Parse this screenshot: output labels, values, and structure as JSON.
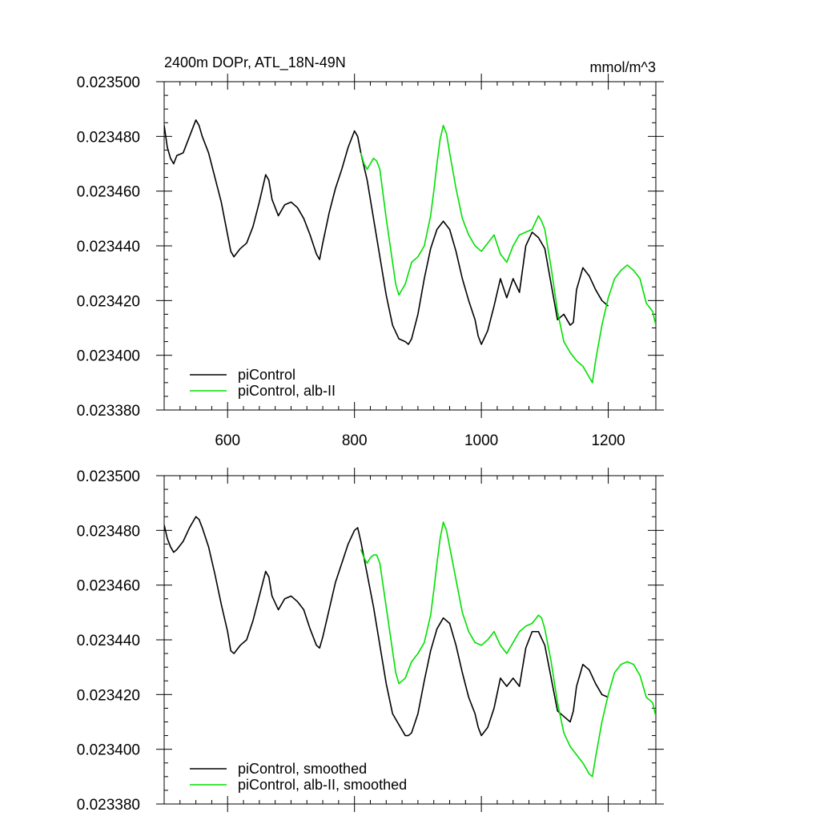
{
  "chart_data": [
    {
      "type": "line",
      "title": "2400m DOPr, ATL_18N-49N",
      "units": "mmol/m^3",
      "xlim": [
        500,
        1275
      ],
      "ylim": [
        0.02338,
        0.0235
      ],
      "x_ticks": [
        600,
        800,
        1000,
        1200
      ],
      "x_tick_labels": [
        "600",
        "800",
        "1000",
        "1200"
      ],
      "y_ticks": [
        0.02338,
        0.0234,
        0.02342,
        0.02344,
        0.02346,
        0.02348,
        0.0235
      ],
      "y_tick_labels": [
        "0.023380",
        "0.023400",
        "0.023420",
        "0.023440",
        "0.023460",
        "0.023480",
        "0.023500"
      ],
      "grid": false,
      "legend_position": "bottom-left",
      "series": [
        {
          "name": "piControl",
          "color": "#000000",
          "x": [
            500,
            505,
            510,
            515,
            520,
            530,
            540,
            550,
            555,
            560,
            570,
            580,
            590,
            600,
            605,
            610,
            620,
            630,
            640,
            650,
            660,
            665,
            670,
            680,
            690,
            700,
            710,
            720,
            730,
            740,
            745,
            750,
            760,
            770,
            780,
            790,
            800,
            805,
            810,
            820,
            830,
            840,
            850,
            860,
            870,
            880,
            885,
            890,
            900,
            910,
            920,
            930,
            940,
            950,
            960,
            970,
            980,
            990,
            995,
            1000,
            1010,
            1020,
            1030,
            1040,
            1050,
            1060,
            1070,
            1080,
            1090,
            1100,
            1110,
            1120,
            1130,
            1140,
            1145,
            1150,
            1160,
            1170,
            1180,
            1190,
            1200
          ],
          "y": [
            0.023484,
            0.023476,
            0.023472,
            0.02347,
            0.023473,
            0.023474,
            0.02348,
            0.023486,
            0.023484,
            0.02348,
            0.023474,
            0.023465,
            0.023456,
            0.023444,
            0.023438,
            0.023436,
            0.023439,
            0.023441,
            0.023447,
            0.023456,
            0.023466,
            0.023464,
            0.023457,
            0.023451,
            0.023455,
            0.023456,
            0.023454,
            0.02345,
            0.023444,
            0.023437,
            0.023435,
            0.023441,
            0.023452,
            0.023461,
            0.023468,
            0.023476,
            0.023482,
            0.02348,
            0.023474,
            0.023464,
            0.02345,
            0.023436,
            0.023422,
            0.023411,
            0.023406,
            0.023405,
            0.023404,
            0.023406,
            0.023415,
            0.023428,
            0.023439,
            0.023446,
            0.023449,
            0.023446,
            0.023438,
            0.023428,
            0.02342,
            0.023413,
            0.023407,
            0.023404,
            0.023409,
            0.023418,
            0.023428,
            0.023421,
            0.023428,
            0.023423,
            0.02344,
            0.023445,
            0.023443,
            0.023439,
            0.023426,
            0.023413,
            0.023415,
            0.023411,
            0.023412,
            0.023424,
            0.023432,
            0.023429,
            0.023424,
            0.02342,
            0.023418
          ]
        },
        {
          "name": "piControl, alb-II",
          "color": "#00e000",
          "x": [
            810,
            815,
            820,
            825,
            830,
            835,
            840,
            850,
            860,
            865,
            870,
            880,
            890,
            900,
            910,
            920,
            925,
            930,
            935,
            940,
            945,
            950,
            960,
            970,
            980,
            990,
            1000,
            1010,
            1020,
            1030,
            1040,
            1050,
            1060,
            1070,
            1080,
            1090,
            1095,
            1100,
            1110,
            1120,
            1130,
            1140,
            1150,
            1160,
            1170,
            1175,
            1180,
            1190,
            1200,
            1210,
            1220,
            1230,
            1240,
            1250,
            1260,
            1270,
            1275
          ],
          "y": [
            0.023474,
            0.02347,
            0.023468,
            0.02347,
            0.023472,
            0.023471,
            0.023468,
            0.02345,
            0.023434,
            0.023426,
            0.023422,
            0.023426,
            0.023434,
            0.023436,
            0.02344,
            0.023451,
            0.02346,
            0.02347,
            0.023479,
            0.023484,
            0.023481,
            0.023474,
            0.023461,
            0.02345,
            0.023444,
            0.02344,
            0.023438,
            0.023441,
            0.023444,
            0.023437,
            0.023434,
            0.02344,
            0.023444,
            0.023445,
            0.023446,
            0.023451,
            0.023449,
            0.023446,
            0.023432,
            0.023416,
            0.023405,
            0.023401,
            0.023398,
            0.023396,
            0.023392,
            0.02339,
            0.023398,
            0.023411,
            0.023421,
            0.023428,
            0.023431,
            0.023433,
            0.023431,
            0.023428,
            0.023419,
            0.023416,
            0.023411
          ]
        }
      ]
    },
    {
      "type": "line",
      "xlim": [
        500,
        1275
      ],
      "ylim": [
        0.02338,
        0.0235
      ],
      "x_ticks": [
        600,
        800,
        1000,
        1200
      ],
      "y_ticks": [
        0.02338,
        0.0234,
        0.02342,
        0.02344,
        0.02346,
        0.02348,
        0.0235
      ],
      "y_tick_labels": [
        "0.023380",
        "0.023400",
        "0.023420",
        "0.023440",
        "0.023460",
        "0.023480",
        "0.023500"
      ],
      "grid": false,
      "legend_position": "bottom-left",
      "series": [
        {
          "name": "piControl, smoothed",
          "color": "#000000",
          "x": [
            500,
            505,
            510,
            515,
            520,
            530,
            540,
            550,
            555,
            560,
            570,
            580,
            590,
            600,
            605,
            610,
            620,
            630,
            640,
            650,
            660,
            665,
            670,
            680,
            690,
            700,
            710,
            720,
            730,
            740,
            745,
            750,
            760,
            770,
            780,
            790,
            800,
            805,
            810,
            820,
            830,
            840,
            850,
            860,
            870,
            880,
            885,
            890,
            900,
            910,
            920,
            930,
            940,
            950,
            960,
            970,
            980,
            990,
            995,
            1000,
            1010,
            1020,
            1030,
            1040,
            1050,
            1060,
            1070,
            1080,
            1090,
            1100,
            1110,
            1120,
            1130,
            1140,
            1145,
            1150,
            1160,
            1170,
            1180,
            1190,
            1200
          ],
          "y": [
            0.023482,
            0.023477,
            0.023474,
            0.023472,
            0.023473,
            0.023476,
            0.023481,
            0.023485,
            0.023484,
            0.023481,
            0.023474,
            0.023464,
            0.023453,
            0.023443,
            0.023436,
            0.023435,
            0.023438,
            0.02344,
            0.023447,
            0.023456,
            0.023465,
            0.023463,
            0.023456,
            0.023451,
            0.023455,
            0.023456,
            0.023454,
            0.023451,
            0.023444,
            0.023438,
            0.023437,
            0.023441,
            0.023451,
            0.023461,
            0.023468,
            0.023475,
            0.02348,
            0.023481,
            0.023476,
            0.023464,
            0.023452,
            0.023438,
            0.023424,
            0.023413,
            0.023409,
            0.023405,
            0.023405,
            0.023406,
            0.023413,
            0.023425,
            0.023436,
            0.023444,
            0.023448,
            0.023446,
            0.023438,
            0.023428,
            0.023419,
            0.023413,
            0.023408,
            0.023405,
            0.023408,
            0.023415,
            0.023426,
            0.023423,
            0.023426,
            0.023423,
            0.023437,
            0.023443,
            0.023443,
            0.023438,
            0.023426,
            0.023414,
            0.023412,
            0.02341,
            0.023414,
            0.023423,
            0.023431,
            0.023429,
            0.023424,
            0.02342,
            0.023419
          ]
        },
        {
          "name": "piControl, alb-II, smoothed",
          "color": "#00e000",
          "x": [
            810,
            815,
            820,
            825,
            830,
            835,
            840,
            850,
            860,
            865,
            870,
            880,
            890,
            900,
            910,
            920,
            925,
            930,
            935,
            940,
            945,
            950,
            960,
            970,
            980,
            990,
            1000,
            1010,
            1020,
            1030,
            1040,
            1050,
            1060,
            1070,
            1080,
            1090,
            1095,
            1100,
            1110,
            1120,
            1130,
            1140,
            1150,
            1160,
            1170,
            1175,
            1180,
            1190,
            1200,
            1210,
            1220,
            1230,
            1240,
            1250,
            1260,
            1270,
            1275
          ],
          "y": [
            0.023473,
            0.02347,
            0.023468,
            0.02347,
            0.023471,
            0.023471,
            0.023468,
            0.023452,
            0.023436,
            0.023428,
            0.023424,
            0.023426,
            0.023432,
            0.023435,
            0.023439,
            0.023449,
            0.023458,
            0.023468,
            0.023477,
            0.023483,
            0.02348,
            0.023474,
            0.023462,
            0.02345,
            0.023443,
            0.023439,
            0.023438,
            0.02344,
            0.023443,
            0.023438,
            0.023435,
            0.023439,
            0.023443,
            0.023445,
            0.023446,
            0.023449,
            0.023448,
            0.023444,
            0.023432,
            0.023417,
            0.023406,
            0.023401,
            0.023398,
            0.023395,
            0.023391,
            0.02339,
            0.023397,
            0.02341,
            0.02342,
            0.023428,
            0.023431,
            0.023432,
            0.023431,
            0.023427,
            0.023419,
            0.023417,
            0.023412
          ]
        }
      ]
    }
  ]
}
